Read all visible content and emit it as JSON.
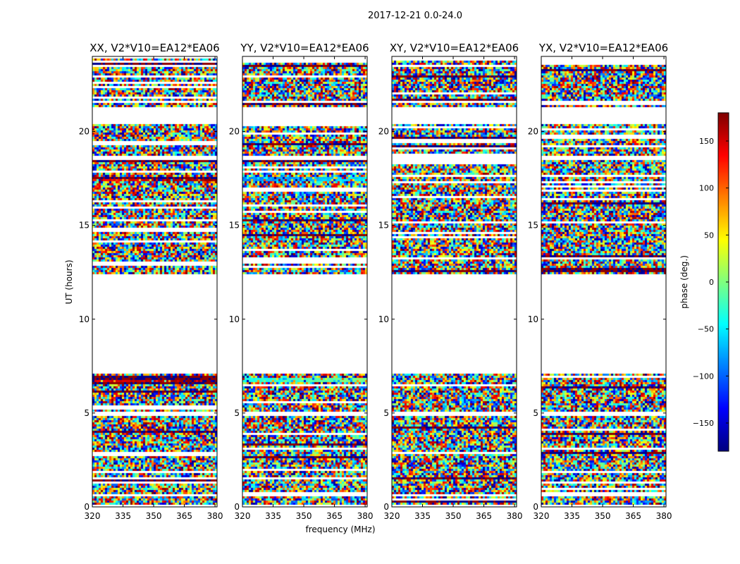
{
  "suptitle": "2017-12-21 0.0-24.0",
  "chart_data": {
    "type": "heatmap",
    "xlabel": "frequency (MHz)",
    "ylabel": "UT (hours)",
    "xlim": [
      320,
      381
    ],
    "ylim": [
      0,
      24
    ],
    "x_ticks": [
      320,
      335,
      350,
      365,
      380
    ],
    "y_ticks": [
      0,
      5,
      10,
      15,
      20
    ],
    "panels": [
      {
        "title": "XX, V2*V10=EA12*EA06",
        "dominant_phase": [
          {
            "ut": [
              17.3,
              17.6
            ],
            "phase": 130
          },
          {
            "ut": [
              6.7,
              6.9
            ],
            "phase": 140
          }
        ]
      },
      {
        "title": "YY, V2*V10=EA12*EA06",
        "dominant_phase": [
          {
            "ut": [
              17.3,
              17.6
            ],
            "phase": -90
          },
          {
            "ut": [
              6.7,
              6.9
            ],
            "phase": -40
          }
        ]
      },
      {
        "title": "XY, V2*V10=EA12*EA06",
        "dominant_phase": []
      },
      {
        "title": "YX, V2*V10=EA12*EA06",
        "dominant_phase": []
      }
    ],
    "empty_ut_ranges": [
      [
        0.0,
        0.1
      ],
      [
        0.55,
        0.65
      ],
      [
        4.85,
        5.05
      ],
      [
        7.05,
        12.4
      ],
      [
        17.65,
        17.7
      ],
      [
        18.5,
        18.65
      ],
      [
        20.45,
        21.35
      ],
      [
        21.55,
        21.65
      ],
      [
        23.85,
        24.0
      ]
    ],
    "colorbar": {
      "label": "phase (deg.)",
      "range": [
        -180,
        180
      ],
      "ticks": [
        150,
        100,
        50,
        0,
        -50,
        -100,
        -150
      ],
      "tick_labels": [
        "150",
        "100",
        "50",
        "0",
        "−50",
        "−100",
        "−150"
      ],
      "colormap": "jet"
    }
  }
}
